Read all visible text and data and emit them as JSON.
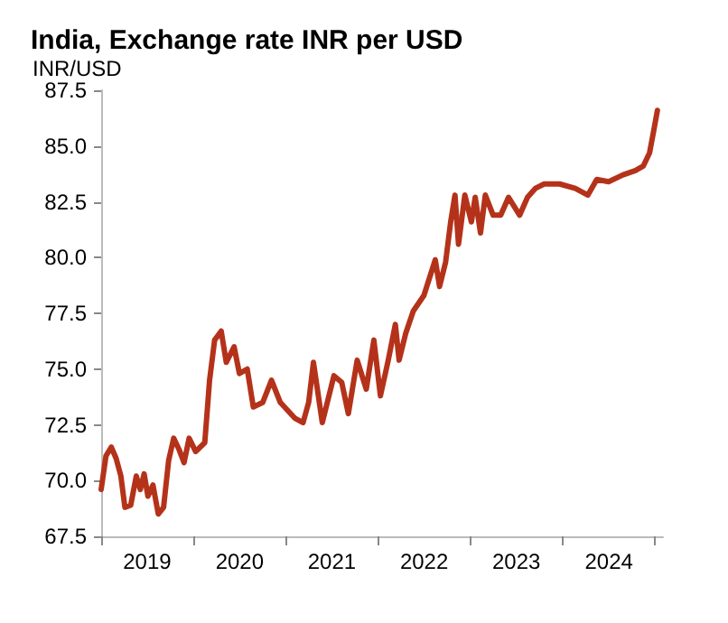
{
  "chart_data": {
    "type": "line",
    "title": "India, Exchange rate INR per USD",
    "ylabel": "INR/USD",
    "x": [
      "2019-01-01",
      "2019-01-20",
      "2019-02-10",
      "2019-03-01",
      "2019-03-20",
      "2019-04-05",
      "2019-04-28",
      "2019-05-20",
      "2019-06-05",
      "2019-06-20",
      "2019-07-05",
      "2019-07-25",
      "2019-08-15",
      "2019-09-05",
      "2019-09-25",
      "2019-10-15",
      "2019-11-05",
      "2019-11-25",
      "2019-12-15",
      "2020-01-10",
      "2020-02-15",
      "2020-03-05",
      "2020-03-25",
      "2020-04-20",
      "2020-05-10",
      "2020-06-10",
      "2020-07-01",
      "2020-08-01",
      "2020-08-25",
      "2020-10-01",
      "2020-11-05",
      "2020-12-10",
      "2021-02-05",
      "2021-03-10",
      "2021-04-01",
      "2021-04-20",
      "2021-05-25",
      "2021-07-10",
      "2021-08-10",
      "2021-09-05",
      "2021-10-10",
      "2021-11-15",
      "2021-12-15",
      "2022-01-10",
      "2022-02-10",
      "2022-03-10",
      "2022-03-25",
      "2022-04-20",
      "2022-05-20",
      "2022-07-01",
      "2022-08-15",
      "2022-09-01",
      "2022-09-25",
      "2022-10-15",
      "2022-11-01",
      "2022-11-15",
      "2022-12-10",
      "2023-01-05",
      "2023-01-20",
      "2023-02-10",
      "2023-03-01",
      "2023-04-01",
      "2023-05-01",
      "2023-06-01",
      "2023-07-15",
      "2023-08-15",
      "2023-09-15",
      "2023-10-20",
      "2023-12-20",
      "2024-02-20",
      "2024-04-10",
      "2024-05-15",
      "2024-07-01",
      "2024-08-25",
      "2024-10-15",
      "2024-11-15",
      "2024-12-10",
      "2024-12-25",
      "2025-01-10"
    ],
    "series": [
      {
        "color": "#b5321a",
        "values": [
          69.6,
          71.1,
          71.5,
          71.0,
          70.2,
          68.8,
          68.9,
          70.2,
          69.6,
          70.3,
          69.3,
          69.8,
          68.5,
          68.8,
          70.9,
          71.9,
          71.4,
          70.8,
          71.9,
          71.3,
          71.7,
          74.5,
          76.3,
          76.7,
          75.3,
          76.0,
          74.8,
          75.0,
          73.3,
          73.5,
          74.5,
          73.5,
          72.8,
          72.6,
          73.5,
          75.3,
          72.6,
          74.7,
          74.4,
          73.0,
          75.4,
          74.1,
          76.3,
          73.8,
          75.4,
          77.0,
          75.4,
          76.6,
          77.6,
          78.3,
          79.9,
          78.7,
          79.8,
          81.6,
          82.8,
          80.6,
          82.8,
          81.6,
          82.7,
          81.1,
          82.8,
          81.9,
          81.9,
          82.7,
          81.9,
          82.7,
          83.1,
          83.3,
          83.3,
          83.1,
          82.8,
          83.5,
          83.4,
          83.7,
          83.9,
          84.1,
          84.7,
          85.6,
          86.6
        ]
      }
    ],
    "xlim": [
      "2019-01-01",
      "2025-02-01"
    ],
    "xticks": [
      {
        "value": "2019-01-01",
        "label": null
      },
      {
        "value": "2019-07-02",
        "label": "2019"
      },
      {
        "value": "2020-01-01",
        "label": null
      },
      {
        "value": "2020-07-02",
        "label": "2020"
      },
      {
        "value": "2021-01-01",
        "label": null
      },
      {
        "value": "2021-07-02",
        "label": "2021"
      },
      {
        "value": "2022-01-01",
        "label": null
      },
      {
        "value": "2022-07-02",
        "label": "2022"
      },
      {
        "value": "2023-01-01",
        "label": null
      },
      {
        "value": "2023-07-02",
        "label": "2023"
      },
      {
        "value": "2024-01-01",
        "label": null
      },
      {
        "value": "2024-07-02",
        "label": "2024"
      },
      {
        "value": "2025-01-01",
        "label": null
      }
    ],
    "ylim": [
      67.5,
      87.5
    ],
    "yticks": [
      67.5,
      {
        "value": 70,
        "label": "70.0"
      },
      72.5,
      {
        "value": 75,
        "label": "75.0"
      },
      77.5,
      {
        "value": 80,
        "label": "80.0"
      },
      82.5,
      {
        "value": 85,
        "label": "85.0"
      },
      87.5
    ],
    "grid": false,
    "marker": "none",
    "line_style": "solid"
  }
}
